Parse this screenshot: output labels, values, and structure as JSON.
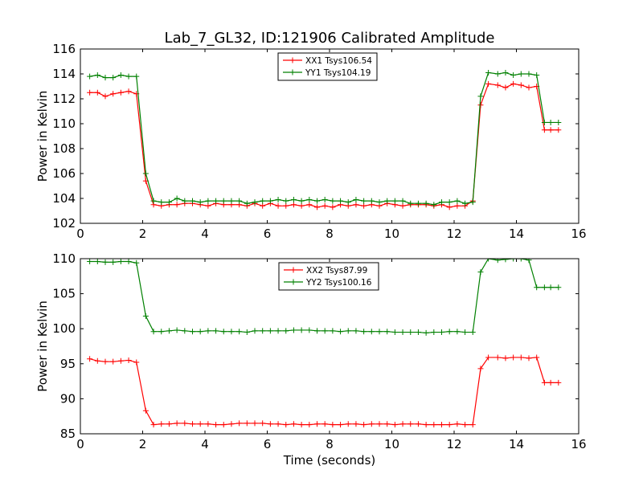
{
  "title": "Lab_7_GL32, ID:121906 Calibrated Amplitude",
  "chart_data": [
    {
      "type": "line",
      "ylabel": "Power in Kelvin",
      "xlabel": "",
      "xlim": [
        0,
        16
      ],
      "ylim": [
        102,
        116
      ],
      "xticks": [
        "0",
        "2",
        "4",
        "6",
        "8",
        "10",
        "12",
        "14",
        "16"
      ],
      "yticks": [
        "102",
        "104",
        "106",
        "108",
        "110",
        "112",
        "114",
        "116"
      ],
      "legend": "top-center",
      "grid": false,
      "x": [
        0.3,
        0.55,
        0.8,
        1.05,
        1.3,
        1.55,
        1.8,
        2.1,
        2.35,
        2.6,
        2.85,
        3.1,
        3.35,
        3.6,
        3.85,
        4.1,
        4.35,
        4.6,
        4.85,
        5.1,
        5.35,
        5.6,
        5.85,
        6.1,
        6.35,
        6.6,
        6.85,
        7.1,
        7.35,
        7.6,
        7.85,
        8.1,
        8.35,
        8.6,
        8.85,
        9.1,
        9.35,
        9.6,
        9.85,
        10.1,
        10.35,
        10.6,
        10.85,
        11.1,
        11.35,
        11.6,
        11.85,
        12.1,
        12.35,
        12.6,
        12.85,
        13.1,
        13.4,
        13.65,
        13.9,
        14.15,
        14.4,
        14.65,
        14.9,
        15.1,
        15.35
      ],
      "series": [
        {
          "name": "XX1 Tsys106.54",
          "color": "#ff0000",
          "values": [
            112.5,
            112.5,
            112.2,
            112.4,
            112.5,
            112.6,
            112.4,
            105.4,
            103.5,
            103.4,
            103.5,
            103.5,
            103.6,
            103.6,
            103.5,
            103.4,
            103.6,
            103.5,
            103.5,
            103.5,
            103.4,
            103.6,
            103.4,
            103.6,
            103.4,
            103.4,
            103.5,
            103.4,
            103.5,
            103.3,
            103.4,
            103.3,
            103.5,
            103.4,
            103.5,
            103.4,
            103.5,
            103.4,
            103.6,
            103.5,
            103.4,
            103.5,
            103.5,
            103.5,
            103.4,
            103.5,
            103.3,
            103.4,
            103.4,
            103.8,
            111.5,
            113.2,
            113.1,
            112.9,
            113.2,
            113.1,
            112.9,
            113.0,
            109.5,
            109.5,
            109.5
          ]
        },
        {
          "name": "YY1 Tsys104.19",
          "color": "#008000",
          "values": [
            113.8,
            113.9,
            113.7,
            113.7,
            113.9,
            113.8,
            113.8,
            106.0,
            103.8,
            103.7,
            103.7,
            104.0,
            103.8,
            103.8,
            103.7,
            103.8,
            103.8,
            103.8,
            103.8,
            103.8,
            103.6,
            103.7,
            103.8,
            103.8,
            103.9,
            103.8,
            103.9,
            103.8,
            103.9,
            103.8,
            103.9,
            103.8,
            103.8,
            103.7,
            103.9,
            103.8,
            103.8,
            103.7,
            103.8,
            103.8,
            103.8,
            103.6,
            103.6,
            103.6,
            103.5,
            103.7,
            103.7,
            103.8,
            103.6,
            103.7,
            112.2,
            114.1,
            114.0,
            114.1,
            113.9,
            114.0,
            114.0,
            113.9,
            110.1,
            110.1,
            110.1
          ]
        }
      ]
    },
    {
      "type": "line",
      "ylabel": "Power in Kelvin",
      "xlabel": "Time (seconds)",
      "xlim": [
        0,
        16
      ],
      "ylim": [
        85,
        110
      ],
      "xticks": [
        "0",
        "2",
        "4",
        "6",
        "8",
        "10",
        "12",
        "14",
        "16"
      ],
      "yticks": [
        "85",
        "90",
        "95",
        "100",
        "105",
        "110"
      ],
      "legend": "top-center",
      "grid": false,
      "x": [
        0.3,
        0.55,
        0.8,
        1.05,
        1.3,
        1.55,
        1.8,
        2.1,
        2.35,
        2.6,
        2.85,
        3.1,
        3.35,
        3.6,
        3.85,
        4.1,
        4.35,
        4.6,
        4.85,
        5.1,
        5.35,
        5.6,
        5.85,
        6.1,
        6.35,
        6.6,
        6.85,
        7.1,
        7.35,
        7.6,
        7.85,
        8.1,
        8.35,
        8.6,
        8.85,
        9.1,
        9.35,
        9.6,
        9.85,
        10.1,
        10.35,
        10.6,
        10.85,
        11.1,
        11.35,
        11.6,
        11.85,
        12.1,
        12.35,
        12.6,
        12.85,
        13.1,
        13.4,
        13.65,
        13.9,
        14.15,
        14.4,
        14.65,
        14.9,
        15.1,
        15.35
      ],
      "series": [
        {
          "name": "XX2 Tsys87.99",
          "color": "#ff0000",
          "values": [
            95.7,
            95.4,
            95.3,
            95.3,
            95.4,
            95.5,
            95.2,
            88.3,
            86.3,
            86.4,
            86.4,
            86.5,
            86.5,
            86.4,
            86.4,
            86.4,
            86.3,
            86.3,
            86.4,
            86.5,
            86.5,
            86.5,
            86.5,
            86.4,
            86.4,
            86.3,
            86.4,
            86.3,
            86.3,
            86.4,
            86.4,
            86.3,
            86.3,
            86.4,
            86.4,
            86.3,
            86.4,
            86.4,
            86.4,
            86.3,
            86.4,
            86.4,
            86.4,
            86.3,
            86.3,
            86.3,
            86.3,
            86.4,
            86.3,
            86.3,
            94.3,
            95.9,
            95.9,
            95.8,
            95.9,
            95.9,
            95.8,
            95.9,
            92.3,
            92.3,
            92.3
          ]
        },
        {
          "name": "YY2 Tsys100.16",
          "color": "#008000",
          "values": [
            109.6,
            109.6,
            109.5,
            109.5,
            109.6,
            109.6,
            109.4,
            101.8,
            99.6,
            99.6,
            99.7,
            99.8,
            99.7,
            99.6,
            99.6,
            99.7,
            99.7,
            99.6,
            99.6,
            99.6,
            99.5,
            99.7,
            99.7,
            99.7,
            99.7,
            99.7,
            99.8,
            99.8,
            99.8,
            99.7,
            99.7,
            99.7,
            99.6,
            99.7,
            99.7,
            99.6,
            99.6,
            99.6,
            99.6,
            99.5,
            99.5,
            99.5,
            99.5,
            99.4,
            99.5,
            99.5,
            99.6,
            99.6,
            99.5,
            99.5,
            108.1,
            110.0,
            109.8,
            109.9,
            110.0,
            110.0,
            109.8,
            105.9,
            105.9,
            105.9,
            105.9
          ]
        }
      ]
    }
  ]
}
